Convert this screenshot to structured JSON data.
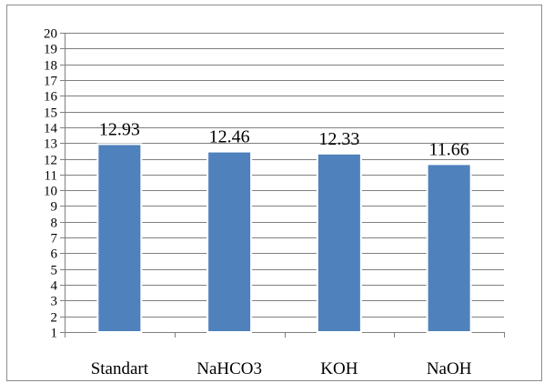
{
  "chart_data": {
    "type": "bar",
    "title": "",
    "xlabel": "",
    "ylabel": "",
    "categories": [
      "Standart",
      "NaHCO3",
      "KOH",
      "NaOH"
    ],
    "values": [
      12.93,
      12.46,
      12.33,
      11.66
    ],
    "data_labels": [
      "12.93",
      "12.46",
      "12.33",
      "11.66"
    ],
    "ylim": [
      1,
      20
    ],
    "yticks": [
      1,
      2,
      3,
      4,
      5,
      6,
      7,
      8,
      9,
      10,
      11,
      12,
      13,
      14,
      15,
      16,
      17,
      18,
      19,
      20
    ],
    "grid": true,
    "legend": "none",
    "colors": {
      "bar_fill": "#4f81bd",
      "bar_edge": "#ffffff",
      "grid": "#7f7f7f",
      "axis": "#7f7f7f"
    }
  }
}
